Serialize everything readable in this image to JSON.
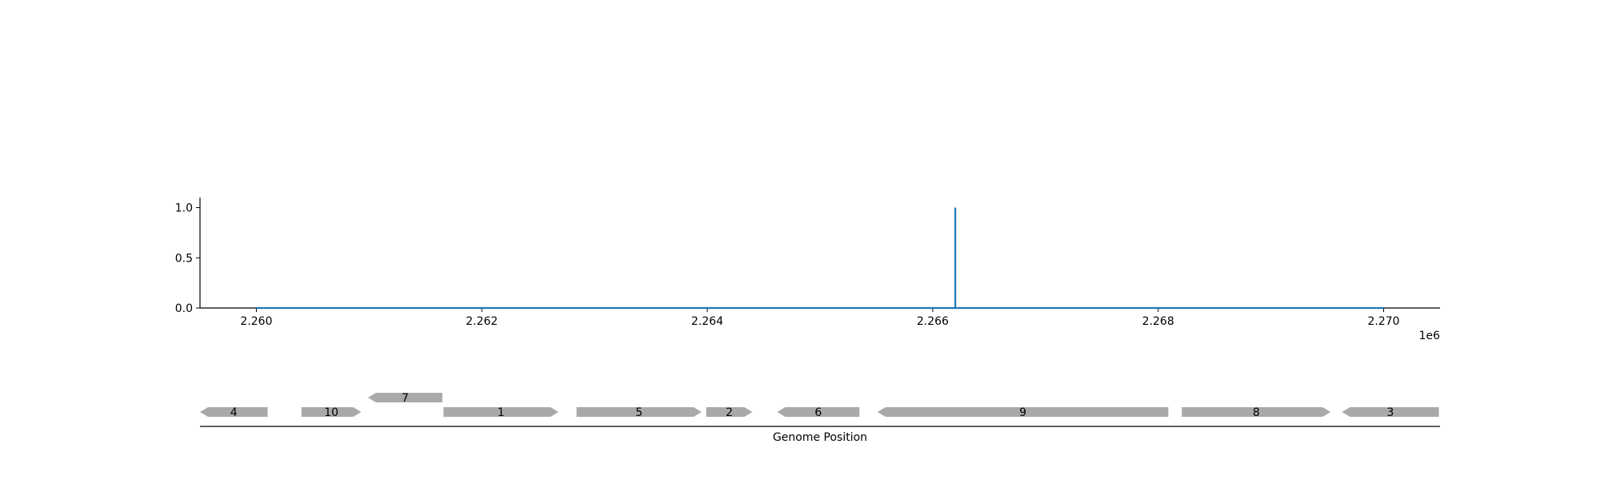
{
  "chart_data": {
    "type": "line",
    "x_offset_label": "1e6",
    "xlim": [
      2259500,
      2270500
    ],
    "ylim": [
      0,
      1.1
    ],
    "x_ticks": [
      2260000,
      2262000,
      2264000,
      2266000,
      2268000,
      2270000
    ],
    "x_tick_labels": [
      "2.260",
      "2.262",
      "2.264",
      "2.266",
      "2.268",
      "2.270"
    ],
    "y_ticks": [
      0.0,
      0.5,
      1.0
    ],
    "y_tick_labels": [
      "0.0",
      "0.5",
      "1.0"
    ],
    "series": [
      {
        "color": "#1f77b4",
        "x": [
          2260000,
          2266200,
          2266200,
          2266200,
          2270000
        ],
        "y": [
          0,
          0,
          1.0,
          0,
          0
        ]
      }
    ],
    "grid": false,
    "gene_track": {
      "xlabel": "Genome Position",
      "color": "#a9a9a9",
      "genes": [
        {
          "label": "4",
          "start": 2259500,
          "end": 2260100,
          "strand": "-",
          "row": 0
        },
        {
          "label": "10",
          "start": 2260400,
          "end": 2260930,
          "strand": "+",
          "row": 0
        },
        {
          "label": "7",
          "start": 2260990,
          "end": 2261650,
          "strand": "-",
          "row": 1
        },
        {
          "label": "1",
          "start": 2261660,
          "end": 2262680,
          "strand": "+",
          "row": 0
        },
        {
          "label": "5",
          "start": 2262840,
          "end": 2263950,
          "strand": "+",
          "row": 0
        },
        {
          "label": "2",
          "start": 2263990,
          "end": 2264400,
          "strand": "+",
          "row": 0
        },
        {
          "label": "6",
          "start": 2264620,
          "end": 2265350,
          "strand": "-",
          "row": 0
        },
        {
          "label": "9",
          "start": 2265510,
          "end": 2268090,
          "strand": "-",
          "row": 0
        },
        {
          "label": "8",
          "start": 2268210,
          "end": 2269530,
          "strand": "+",
          "row": 0
        },
        {
          "label": "3",
          "start": 2269630,
          "end": 2270490,
          "strand": "-",
          "row": 0
        }
      ]
    }
  }
}
